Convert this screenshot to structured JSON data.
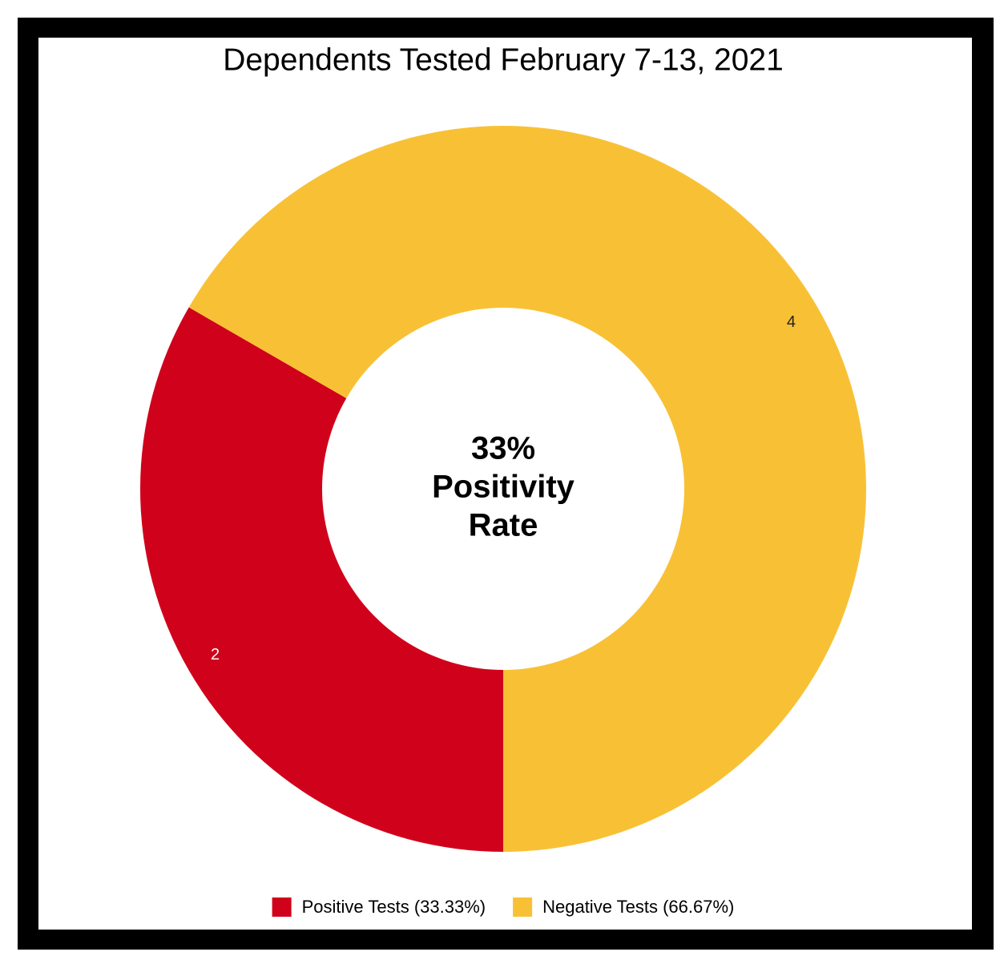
{
  "chart_data": {
    "type": "pie",
    "title": "Dependents Tested February 7-13, 2021",
    "categories": [
      "Positive Tests (33.33%)",
      "Negative Tests (66.67%)"
    ],
    "values": [
      2,
      4
    ],
    "colors": [
      "#d0021b",
      "#f8c135"
    ],
    "hole": true,
    "center_label": [
      "33%",
      "Positivity",
      "Rate"
    ],
    "legend": "bottom"
  }
}
